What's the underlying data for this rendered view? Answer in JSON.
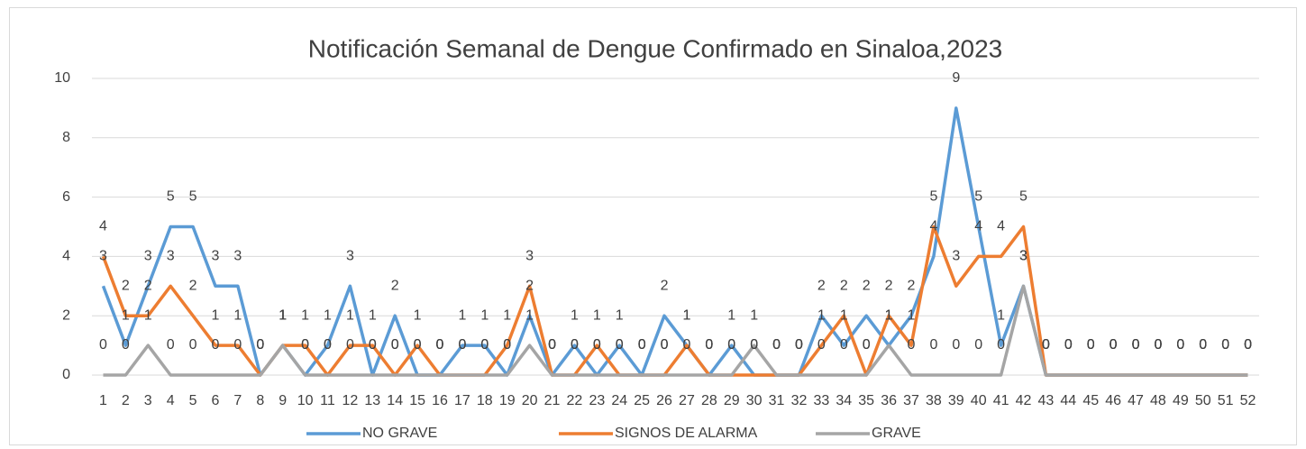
{
  "chart_data": {
    "type": "line",
    "title": "Notificación Semanal de Dengue Confirmado en Sinaloa,2023",
    "categories": [
      "1",
      "2",
      "3",
      "4",
      "5",
      "6",
      "7",
      "8",
      "9",
      "10",
      "11",
      "12",
      "13",
      "14",
      "15",
      "16",
      "17",
      "18",
      "19",
      "20",
      "21",
      "22",
      "23",
      "24",
      "25",
      "26",
      "27",
      "28",
      "29",
      "30",
      "31",
      "32",
      "33",
      "34",
      "35",
      "36",
      "37",
      "38",
      "39",
      "40",
      "41",
      "42",
      "43",
      "44",
      "45",
      "46",
      "47",
      "48",
      "49",
      "50",
      "51",
      "52"
    ],
    "series": [
      {
        "name": "NO GRAVE",
        "color": "#5b9bd5",
        "values": [
          3,
          1,
          3,
          5,
          5,
          3,
          3,
          0,
          1,
          0,
          1,
          3,
          0,
          2,
          0,
          0,
          1,
          1,
          0,
          2,
          0,
          1,
          0,
          1,
          0,
          2,
          1,
          0,
          1,
          0,
          0,
          0,
          2,
          1,
          2,
          1,
          2,
          4,
          9,
          5,
          1,
          3,
          0,
          0,
          0,
          0,
          0,
          0,
          0,
          0,
          0,
          0
        ]
      },
      {
        "name": "SIGNOS DE ALARMA",
        "color": "#ed7d31",
        "values": [
          4,
          2,
          2,
          3,
          2,
          1,
          1,
          0,
          1,
          1,
          0,
          1,
          1,
          0,
          1,
          0,
          0,
          0,
          1,
          3,
          0,
          0,
          1,
          0,
          0,
          0,
          1,
          0,
          0,
          0,
          0,
          0,
          1,
          2,
          0,
          2,
          1,
          5,
          3,
          4,
          4,
          5,
          0,
          0,
          0,
          0,
          0,
          0,
          0,
          0,
          0,
          0
        ]
      },
      {
        "name": "GRAVE",
        "color": "#a5a5a5",
        "values": [
          0,
          0,
          1,
          0,
          0,
          0,
          0,
          0,
          1,
          0,
          0,
          0,
          0,
          0,
          0,
          0,
          0,
          0,
          0,
          1,
          0,
          0,
          0,
          0,
          0,
          0,
          0,
          0,
          0,
          1,
          0,
          0,
          0,
          0,
          0,
          1,
          0,
          0,
          0,
          0,
          0,
          3,
          0,
          0,
          0,
          0,
          0,
          0,
          0,
          0,
          0,
          0
        ]
      }
    ],
    "ylim": [
      0,
      10
    ],
    "yticks": [
      0,
      2,
      4,
      6,
      8,
      10
    ],
    "grid": true,
    "legend": "bottom"
  }
}
